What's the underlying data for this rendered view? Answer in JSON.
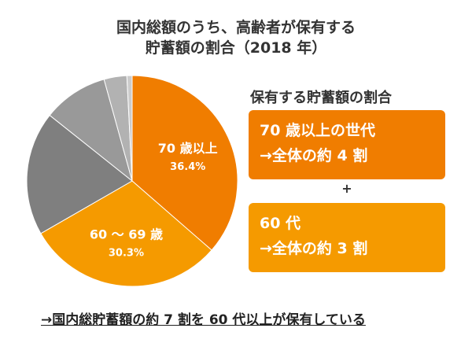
{
  "title": {
    "line1": "国内総額のうち、高齢者が保有する",
    "line2": "貯蓄額の割合（2018 年）"
  },
  "chart_data": {
    "type": "pie",
    "title": "国内総額のうち、高齢者が保有する貯蓄額の割合（2018 年）",
    "slices": [
      {
        "label": "70 歳以上",
        "value": 36.4,
        "value_label": "36.4%",
        "color": "#f07d00"
      },
      {
        "label": "60 〜 69 歳",
        "value": 30.3,
        "value_label": "30.3%",
        "color": "#f59a00"
      },
      {
        "label": "",
        "value": 19.0,
        "value_label": "",
        "color": "#7f7f7f"
      },
      {
        "label": "",
        "value": 10.0,
        "value_label": "",
        "color": "#999999"
      },
      {
        "label": "",
        "value": 3.5,
        "value_label": "",
        "color": "#b2b2b2"
      },
      {
        "label": "",
        "value": 0.8,
        "value_label": "",
        "color": "#cccccc"
      }
    ]
  },
  "legend": {
    "title": "保有する貯蓄額の割合",
    "box1": {
      "line1": "70 歳以上の世代",
      "line2": "→全体の約 4 割"
    },
    "plus": "+",
    "box2": {
      "line1": "60 代",
      "line2": "→全体の約 3 割"
    }
  },
  "conclusion": "→国内総貯蓄額の約 7 割を 60 代以上が保有している"
}
